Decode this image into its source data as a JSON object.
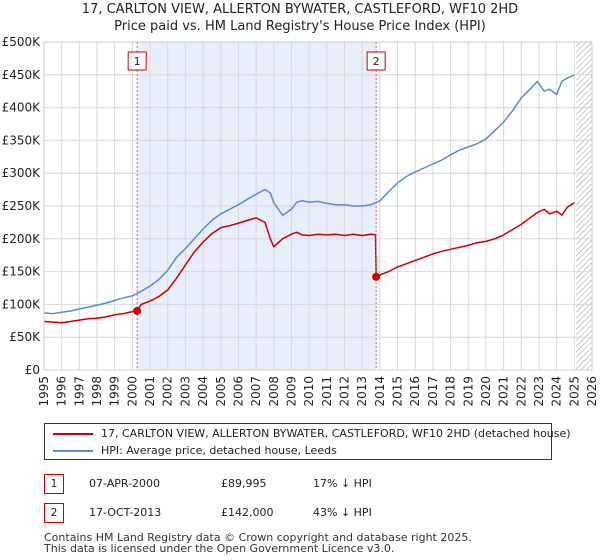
{
  "title_line1": "17, CARLTON VIEW, ALLERTON BYWATER, CASTLEFORD, WF10 2HD",
  "title_line2": "Price paid vs. HM Land Registry's House Price Index (HPI)",
  "chart_data": {
    "type": "line",
    "title": "17, CARLTON VIEW, ALLERTON BYWATER, CASTLEFORD, WF10 2HD — Price paid vs. HM Land Registry's House Price Index (HPI)",
    "xlabel": "",
    "ylabel": "",
    "xlim": [
      1995,
      2026
    ],
    "ylim": [
      0,
      500000
    ],
    "x_ticks": [
      "1995",
      "1996",
      "1997",
      "1998",
      "1999",
      "2000",
      "2001",
      "2002",
      "2003",
      "2004",
      "2005",
      "2006",
      "2007",
      "2008",
      "2009",
      "2010",
      "2011",
      "2012",
      "2013",
      "2014",
      "2015",
      "2016",
      "2017",
      "2018",
      "2019",
      "2020",
      "2021",
      "2022",
      "2023",
      "2024",
      "2025",
      "2026"
    ],
    "y_ticks": [
      "£0",
      "£50K",
      "£100K",
      "£150K",
      "£200K",
      "£250K",
      "£300K",
      "£350K",
      "£400K",
      "£450K",
      "£500K"
    ],
    "y_tick_values": [
      0,
      50000,
      100000,
      150000,
      200000,
      250000,
      300000,
      350000,
      400000,
      450000,
      500000
    ],
    "grid": true,
    "shaded_span": [
      2000.27,
      2013.79
    ],
    "forecast_hatch_from": 2025.1,
    "series": [
      {
        "name": "17, CARLTON VIEW, ALLERTON BYWATER, CASTLEFORD, WF10 2HD (detached house)",
        "color": "#cc0000",
        "x": [
          1995.0,
          1995.5,
          1996.0,
          1996.5,
          1997.0,
          1997.5,
          1998.0,
          1998.5,
          1999.0,
          1999.5,
          2000.0,
          2000.27,
          2000.5,
          2001.0,
          2001.5,
          2002.0,
          2002.5,
          2003.0,
          2003.5,
          2004.0,
          2004.5,
          2005.0,
          2005.5,
          2006.0,
          2006.5,
          2007.0,
          2007.5,
          2007.8,
          2008.0,
          2008.5,
          2009.0,
          2009.3,
          2009.6,
          2010.0,
          2010.5,
          2011.0,
          2011.5,
          2012.0,
          2012.5,
          2013.0,
          2013.5,
          2013.75,
          2013.79,
          2014.0,
          2014.5,
          2015.0,
          2015.5,
          2016.0,
          2016.5,
          2017.0,
          2017.5,
          2018.0,
          2018.5,
          2019.0,
          2019.5,
          2020.0,
          2020.5,
          2021.0,
          2021.5,
          2022.0,
          2022.5,
          2022.9,
          2023.3,
          2023.6,
          2024.0,
          2024.3,
          2024.6,
          2025.0
        ],
        "values": [
          74000,
          73000,
          72000,
          74000,
          76000,
          78000,
          79000,
          81000,
          84000,
          86000,
          89000,
          89995,
          100000,
          105000,
          112000,
          122000,
          140000,
          160000,
          180000,
          195000,
          208000,
          217000,
          220000,
          224000,
          228000,
          232000,
          225000,
          200000,
          188000,
          200000,
          207000,
          210000,
          206000,
          205000,
          207000,
          206000,
          207000,
          205000,
          207000,
          205000,
          207000,
          206000,
          142000,
          145000,
          150000,
          157000,
          162000,
          167000,
          172000,
          177000,
          181000,
          184000,
          187000,
          190000,
          194000,
          196000,
          200000,
          206000,
          214000,
          222000,
          232000,
          240000,
          245000,
          238000,
          242000,
          236000,
          248000,
          255000
        ]
      },
      {
        "name": "HPI: Average price, detached house, Leeds",
        "color": "#5b8bd0",
        "x": [
          1995.0,
          1995.5,
          1996.0,
          1996.5,
          1997.0,
          1997.5,
          1998.0,
          1998.5,
          1999.0,
          1999.5,
          2000.0,
          2000.5,
          2001.0,
          2001.5,
          2002.0,
          2002.5,
          2003.0,
          2003.5,
          2004.0,
          2004.5,
          2005.0,
          2005.5,
          2006.0,
          2006.5,
          2007.0,
          2007.5,
          2007.8,
          2008.0,
          2008.5,
          2009.0,
          2009.3,
          2009.6,
          2010.0,
          2010.5,
          2011.0,
          2011.5,
          2012.0,
          2012.5,
          2013.0,
          2013.5,
          2014.0,
          2014.5,
          2015.0,
          2015.5,
          2016.0,
          2016.5,
          2017.0,
          2017.5,
          2018.0,
          2018.5,
          2019.0,
          2019.5,
          2020.0,
          2020.5,
          2021.0,
          2021.5,
          2022.0,
          2022.5,
          2022.9,
          2023.3,
          2023.6,
          2024.0,
          2024.3,
          2024.6,
          2025.0
        ],
        "values": [
          87000,
          86000,
          88000,
          90000,
          93000,
          96000,
          99000,
          102000,
          106000,
          110000,
          113000,
          120000,
          128000,
          138000,
          152000,
          172000,
          185000,
          200000,
          215000,
          228000,
          238000,
          245000,
          252000,
          260000,
          268000,
          275000,
          270000,
          255000,
          236000,
          245000,
          256000,
          258000,
          256000,
          257000,
          254000,
          252000,
          252000,
          250000,
          250000,
          252000,
          258000,
          272000,
          285000,
          295000,
          302000,
          308000,
          314000,
          320000,
          328000,
          335000,
          340000,
          345000,
          352000,
          365000,
          378000,
          395000,
          415000,
          428000,
          440000,
          425000,
          428000,
          420000,
          440000,
          445000,
          450000
        ]
      }
    ],
    "sales": [
      {
        "label": "1",
        "x": 2000.27,
        "value": 89995
      },
      {
        "label": "2",
        "x": 2013.79,
        "value": 142000
      }
    ]
  },
  "legend": {
    "property_label": "17, CARLTON VIEW, ALLERTON BYWATER, CASTLEFORD, WF10 2HD (detached house)",
    "hpi_label": "HPI: Average price, detached house, Leeds",
    "property_color": "#cc0000",
    "hpi_color": "#5b8bd0"
  },
  "transactions": [
    {
      "num": "1",
      "date": "07-APR-2000",
      "price": "£89,995",
      "hpi": "17% ↓ HPI"
    },
    {
      "num": "2",
      "date": "17-OCT-2013",
      "price": "£142,000",
      "hpi": "43% ↓ HPI"
    }
  ],
  "footer": {
    "line1": "Contains HM Land Registry data © Crown copyright and database right 2025.",
    "line2": "This data is licensed under the Open Government Licence v3.0."
  }
}
